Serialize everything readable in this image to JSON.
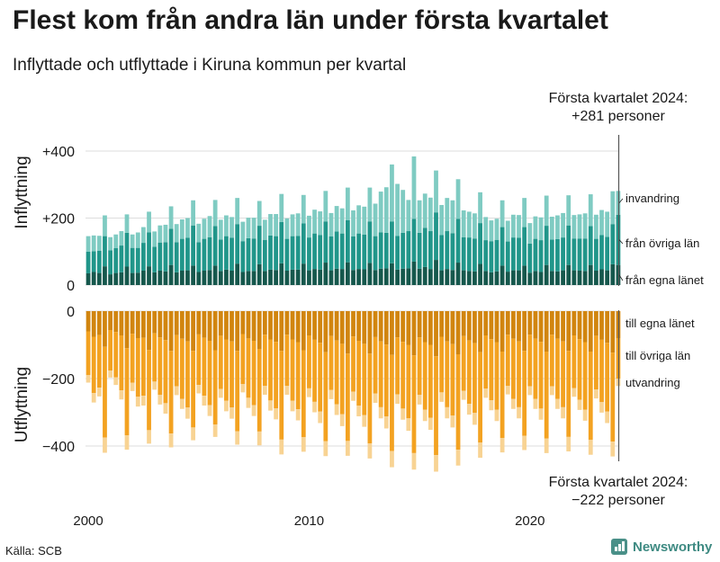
{
  "header": {
    "title": "Flest kom från andra län under första kvartalet",
    "subtitle": "Inflyttade och utflyttade i Kiruna kommun per kvartal"
  },
  "footer": {
    "source": "Källa: SCB",
    "brand": "Newsworthy"
  },
  "annotations": {
    "top": {
      "line1": "Första kvartalet 2024:",
      "line2": "+281 personer"
    },
    "bottom": {
      "line1": "Första kvartalet 2024:",
      "line2": "−222 personer"
    }
  },
  "colors": {
    "in_own": "#16584d",
    "in_other": "#21968a",
    "in_immig": "#7fcbc2",
    "out_own": "#d1850f",
    "out_other": "#f3a221",
    "out_emig": "#f8d393",
    "grid": "#dddddd",
    "axis": "#555555"
  },
  "chart_data": [
    {
      "type": "bar",
      "stacked": true,
      "ylabel": "Inflyttning",
      "ylim": [
        0,
        450
      ],
      "yticks": [
        0,
        200,
        400
      ],
      "yticklabels": [
        "0",
        "+200",
        "+400"
      ],
      "series": [
        {
          "name": "från egna länet",
          "values": [
            35,
            39,
            36,
            56,
            32,
            36,
            38,
            55,
            36,
            37,
            43,
            56,
            38,
            43,
            41,
            60,
            38,
            43,
            44,
            58,
            39,
            43,
            45,
            58,
            42,
            46,
            43,
            64,
            39,
            42,
            42,
            62,
            42,
            46,
            45,
            65,
            43,
            46,
            46,
            64,
            44,
            48,
            46,
            67,
            44,
            49,
            48,
            68,
            45,
            48,
            47,
            66,
            45,
            49,
            50,
            65,
            46,
            49,
            50,
            70,
            49,
            54,
            48,
            75,
            44,
            48,
            45,
            67,
            44,
            42,
            41,
            63,
            42,
            38,
            41,
            58,
            40,
            44,
            44,
            58,
            37,
            42,
            39,
            60,
            42,
            41,
            44,
            60,
            44,
            43,
            42,
            60,
            43,
            47,
            44,
            62,
            60
          ]
        },
        {
          "name": "från övriga län",
          "values": [
            65,
            62,
            66,
            90,
            72,
            74,
            80,
            101,
            75,
            74,
            83,
            101,
            76,
            84,
            87,
            108,
            90,
            95,
            97,
            120,
            89,
            95,
            98,
            118,
            94,
            100,
            98,
            118,
            92,
            98,
            97,
            115,
            93,
            102,
            101,
            123,
            95,
            100,
            101,
            120,
            98,
            106,
            103,
            123,
            101,
            111,
            106,
            126,
            100,
            106,
            104,
            124,
            101,
            108,
            106,
            125,
            101,
            107,
            111,
            128,
            107,
            117,
            113,
            142,
            105,
            113,
            110,
            131,
            99,
            100,
            98,
            122,
            92,
            93,
            94,
            115,
            90,
            98,
            97,
            115,
            87,
            96,
            95,
            117,
            94,
            96,
            98,
            118,
            95,
            96,
            97,
            116,
            95,
            102,
            100,
            120,
            150
          ]
        },
        {
          "name": "invandring",
          "values": [
            46,
            47,
            45,
            62,
            39,
            41,
            43,
            55,
            40,
            46,
            47,
            62,
            46,
            51,
            52,
            67,
            54,
            58,
            59,
            75,
            55,
            60,
            63,
            78,
            59,
            62,
            62,
            78,
            58,
            61,
            62,
            74,
            60,
            64,
            66,
            84,
            61,
            65,
            67,
            85,
            65,
            71,
            71,
            91,
            70,
            76,
            75,
            97,
            78,
            84,
            83,
            101,
            97,
            122,
            136,
            170,
            155,
            128,
            93,
            186,
            97,
            102,
            100,
            125,
            90,
            99,
            98,
            118,
            80,
            77,
            75,
            92,
            69,
            62,
            63,
            80,
            62,
            68,
            68,
            87,
            61,
            67,
            68,
            90,
            68,
            71,
            73,
            90,
            70,
            72,
            75,
            95,
            72,
            75,
            75,
            98,
            71
          ]
        }
      ]
    },
    {
      "type": "bar",
      "stacked": true,
      "ylabel": "Utflyttning",
      "ylim": [
        -450,
        0
      ],
      "yticks": [
        0,
        -200,
        -400
      ],
      "yticklabels": [
        "0",
        "−200",
        "−400"
      ],
      "series": [
        {
          "name": "till egna länet",
          "values": [
            -60,
            -76,
            -71,
            -106,
            -56,
            -62,
            -72,
            -110,
            -67,
            -80,
            -79,
            -115,
            -66,
            -78,
            -86,
            -118,
            -71,
            -82,
            -90,
            -118,
            -69,
            -79,
            -88,
            -116,
            -73,
            -84,
            -90,
            -118,
            -68,
            -81,
            -88,
            -112,
            -70,
            -84,
            -91,
            -118,
            -70,
            -84,
            -92,
            -116,
            -72,
            -85,
            -94,
            -122,
            -74,
            -87,
            -97,
            -126,
            -75,
            -88,
            -97,
            -126,
            -77,
            -90,
            -99,
            -130,
            -78,
            -91,
            -100,
            -131,
            -78,
            -92,
            -100,
            -134,
            -76,
            -90,
            -98,
            -128,
            -74,
            -87,
            -95,
            -122,
            -72,
            -83,
            -92,
            -120,
            -70,
            -82,
            -90,
            -118,
            -70,
            -82,
            -91,
            -120,
            -70,
            -82,
            -90,
            -118,
            -72,
            -83,
            -92,
            -120,
            -73,
            -85,
            -94,
            -123,
            -80
          ]
        },
        {
          "name": "till övriga län",
          "values": [
            -130,
            -167,
            -156,
            -269,
            -120,
            -134,
            -163,
            -258,
            -145,
            -174,
            -172,
            -238,
            -143,
            -170,
            -187,
            -245,
            -152,
            -178,
            -196,
            -227,
            -150,
            -172,
            -191,
            -220,
            -158,
            -182,
            -196,
            -238,
            -148,
            -176,
            -191,
            -245,
            -152,
            -181,
            -197,
            -263,
            -152,
            -182,
            -199,
            -258,
            -157,
            -184,
            -204,
            -264,
            -160,
            -189,
            -209,
            -259,
            -164,
            -192,
            -211,
            -266,
            -167,
            -195,
            -213,
            -285,
            -169,
            -198,
            -218,
            -290,
            -170,
            -200,
            -216,
            -293,
            -165,
            -195,
            -212,
            -283,
            -162,
            -188,
            -207,
            -268,
            -158,
            -181,
            -200,
            -256,
            -152,
            -178,
            -195,
            -252,
            -153,
            -178,
            -198,
            -258,
            -153,
            -178,
            -195,
            -255,
            -156,
            -180,
            -200,
            -262,
            -159,
            -185,
            -204,
            -264,
            -120
          ]
        },
        {
          "name": "utvandring",
          "values": [
            -22,
            -28,
            -26,
            -45,
            -21,
            -23,
            -27,
            -43,
            -25,
            -29,
            -29,
            -40,
            -24,
            -29,
            -31,
            -41,
            -26,
            -30,
            -33,
            -38,
            -25,
            -29,
            -32,
            -37,
            -26,
            -31,
            -33,
            -40,
            -25,
            -30,
            -32,
            -41,
            -26,
            -30,
            -33,
            -44,
            -26,
            -31,
            -33,
            -43,
            -26,
            -31,
            -34,
            -44,
            -27,
            -32,
            -35,
            -44,
            -27,
            -32,
            -35,
            -45,
            -28,
            -33,
            -36,
            -48,
            -28,
            -33,
            -37,
            -49,
            -29,
            -34,
            -36,
            -49,
            -28,
            -33,
            -35,
            -47,
            -27,
            -32,
            -35,
            -45,
            -27,
            -30,
            -34,
            -43,
            -25,
            -30,
            -33,
            -42,
            -26,
            -30,
            -33,
            -43,
            -26,
            -30,
            -33,
            -43,
            -26,
            -30,
            -33,
            -44,
            -27,
            -31,
            -34,
            -44,
            -22
          ]
        }
      ]
    }
  ],
  "x_axis": {
    "first_period": "2000 Q1",
    "last_period": "2024 Q1",
    "ticks": [
      "2000",
      "2010",
      "2020"
    ]
  }
}
